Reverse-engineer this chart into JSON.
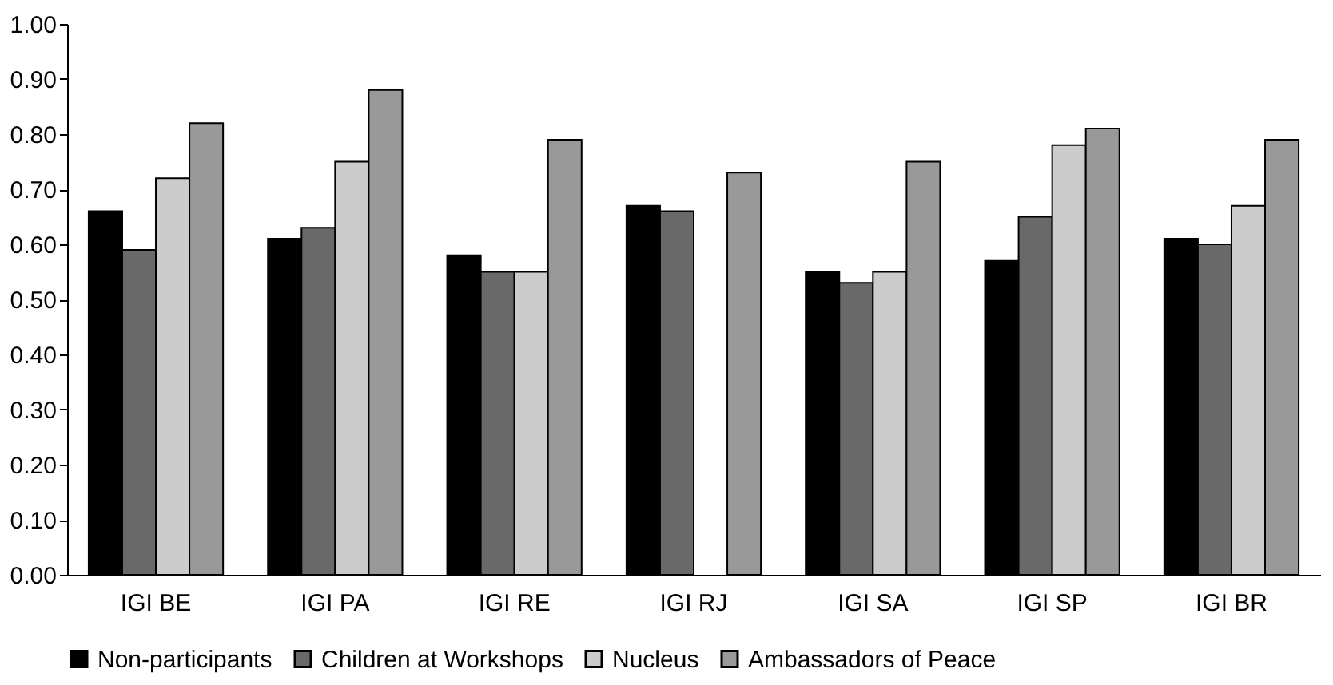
{
  "chart_data": {
    "type": "bar",
    "categories": [
      "IGI BE",
      "IGI PA",
      "IGI RE",
      "IGI RJ",
      "IGI SA",
      "IGI SP",
      "IGI BR"
    ],
    "series": [
      {
        "name": "Non-participants",
        "color": "#000000",
        "values": [
          0.66,
          0.61,
          0.58,
          0.67,
          0.55,
          0.57,
          0.61
        ]
      },
      {
        "name": "Children at Workshops",
        "color": "#696969",
        "values": [
          0.59,
          0.63,
          0.55,
          0.66,
          0.53,
          0.65,
          0.6
        ]
      },
      {
        "name": "Nucleus",
        "color": "#cccccc",
        "values": [
          0.72,
          0.75,
          0.55,
          null,
          0.55,
          0.78,
          0.67
        ]
      },
      {
        "name": "Ambassadors of Peace",
        "color": "#999999",
        "values": [
          0.82,
          0.88,
          0.79,
          0.73,
          0.75,
          0.81,
          0.79
        ]
      }
    ],
    "ylim": [
      0,
      1
    ],
    "yticks": [
      {
        "value": 0,
        "label": "0.00"
      },
      {
        "value": 0.1,
        "label": "0.10"
      },
      {
        "value": 0.2,
        "label": "0.20"
      },
      {
        "value": 0.3,
        "label": "0.30"
      },
      {
        "value": 0.4,
        "label": "0.40"
      },
      {
        "value": 0.5,
        "label": "0.50"
      },
      {
        "value": 0.6,
        "label": "0.60"
      },
      {
        "value": 0.7,
        "label": "0.70"
      },
      {
        "value": 0.8,
        "label": "0.80"
      },
      {
        "value": 0.9,
        "label": "0.90"
      },
      {
        "value": 1,
        "label": "1.00"
      }
    ],
    "grid": false,
    "legend": "bottom"
  }
}
